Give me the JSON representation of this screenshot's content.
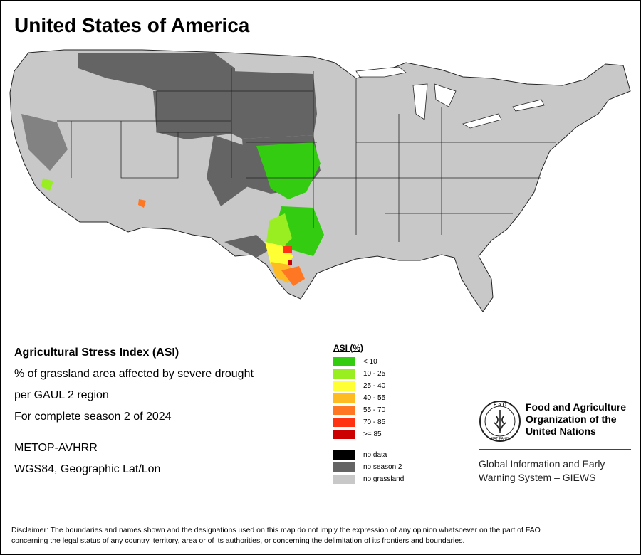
{
  "map": {
    "title": "United States of America",
    "colors": {
      "land": "#c8c8c8",
      "no_season": "#646464",
      "border": "#222222",
      "asi_lt10": "#33cc11",
      "asi_10_25": "#99ee22",
      "asi_25_40": "#ffff33",
      "asi_40_55": "#ffbb22",
      "asi_55_70": "#ff7722",
      "asi_70_85": "#ff3311",
      "asi_ge85": "#cc0000"
    }
  },
  "info": {
    "index_name": "Agricultural Stress Index (ASI)",
    "description": "% of grassland area affected by severe drought",
    "region": "per GAUL 2 region",
    "season": "For complete season 2 of 2024",
    "sensor": "METOP-AVHRR",
    "projection": "WGS84, Geographic Lat/Lon"
  },
  "legend": {
    "title": "ASI (%)",
    "classes": [
      {
        "label": "< 10",
        "color": "#33cc11"
      },
      {
        "label": "10 - 25",
        "color": "#99ee22"
      },
      {
        "label": "25 - 40",
        "color": "#ffff33"
      },
      {
        "label": "40 - 55",
        "color": "#ffbb22"
      },
      {
        "label": "55 - 70",
        "color": "#ff7722"
      },
      {
        "label": "70 - 85",
        "color": "#ff3311"
      },
      {
        "label": ">= 85",
        "color": "#cc0000"
      }
    ],
    "others": [
      {
        "label": "no data",
        "color": "#000000"
      },
      {
        "label": "no season 2",
        "color": "#646464"
      },
      {
        "label": "no grassland",
        "color": "#c8c8c8"
      }
    ]
  },
  "logo": {
    "org_line1": "Food and Agriculture",
    "org_line2": "Organization of the",
    "org_line3": "United Nations",
    "giews_line1": "Global Information and Early",
    "giews_line2": "Warning System – GIEWS",
    "emblem_letters": "FIAT PANIS",
    "emblem_top": "F A O"
  },
  "disclaimer": {
    "line1": "Disclaimer: The boundaries and names shown and the designations used on this map do not imply the expression of any opinion whatsoever on the part of FAO",
    "line2": "concerning the legal status of any country, territory, area or of its authorities, or concerning the delimitation of its frontiers and boundaries."
  }
}
